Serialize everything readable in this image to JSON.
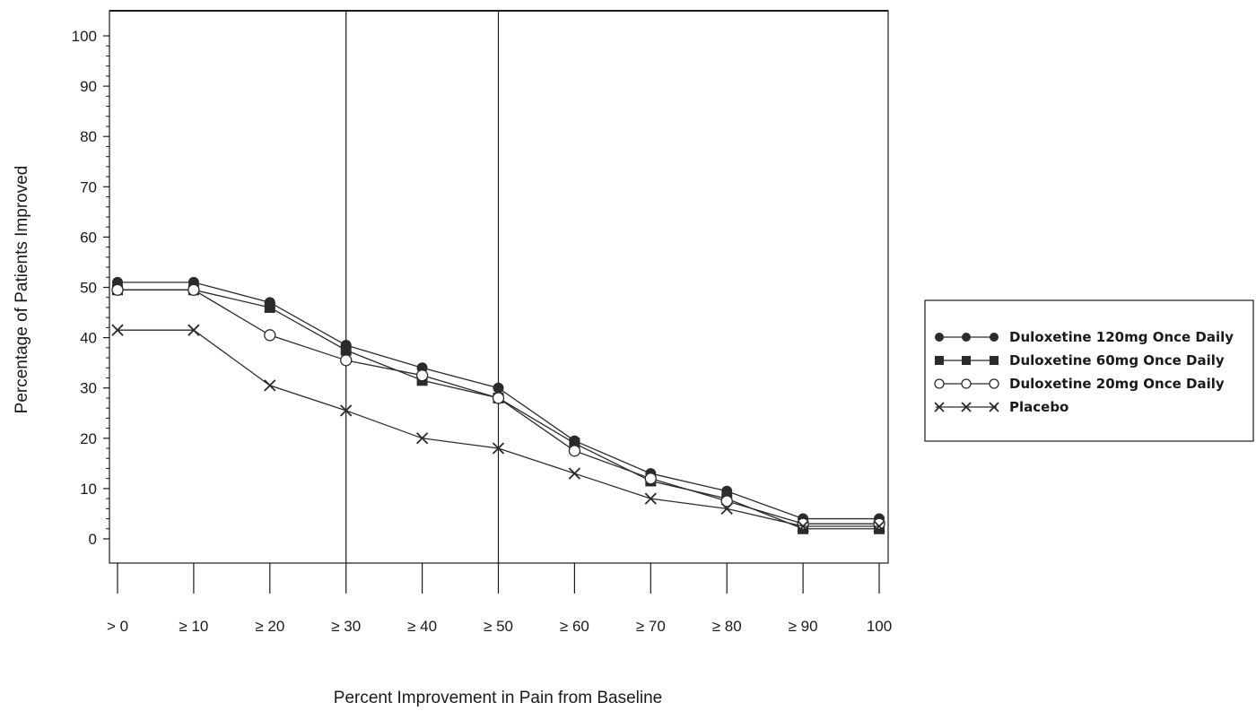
{
  "chart_data": {
    "type": "line",
    "title": "",
    "xlabel": "Percent Improvement in Pain from Baseline",
    "ylabel": "Percentage of Patients Improved",
    "categories": [
      "> 0",
      "≥ 10",
      "≥ 20",
      "≥ 30",
      "≥ 40",
      "≥ 50",
      "≥ 60",
      "≥ 70",
      "≥ 80",
      "≥ 90",
      "100"
    ],
    "yticks": [
      "0",
      "10",
      "20",
      "30",
      "40",
      "50",
      "60",
      "70",
      "80",
      "90",
      "100"
    ],
    "ylim": [
      -5,
      105
    ],
    "reference_lines_at": [
      "≥ 30",
      "≥ 50"
    ],
    "grid": false,
    "legend_position": "right",
    "series": [
      {
        "name": "Duloxetine 120mg Once Daily",
        "marker": "filled-circle",
        "values": [
          51,
          51,
          47,
          38.5,
          34,
          30,
          19.5,
          13,
          9.5,
          4,
          4
        ]
      },
      {
        "name": "Duloxetine 60mg Once Daily",
        "marker": "filled-square",
        "values": [
          49.5,
          49.5,
          46,
          37.5,
          31.5,
          28,
          19,
          11.5,
          8,
          2,
          2
        ]
      },
      {
        "name": "Duloxetine 20mg Once Daily",
        "marker": "open-circle",
        "values": [
          49.5,
          49.5,
          40.5,
          35.5,
          32.5,
          28,
          17.5,
          12,
          7.5,
          3,
          3
        ]
      },
      {
        "name": "Placebo",
        "marker": "x",
        "values": [
          41.5,
          41.5,
          30.5,
          25.5,
          20,
          18,
          13,
          8,
          6,
          2.5,
          2.5
        ]
      }
    ],
    "colors": {
      "line": "#2b2b2b",
      "axis": "#1a1a1a",
      "open_marker_fill": "#ffffff"
    }
  }
}
